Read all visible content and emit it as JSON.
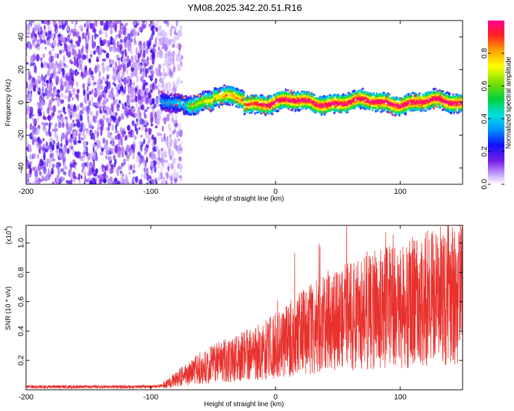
{
  "title": "YM08.2025.342.20.51.R16",
  "chart_data": [
    {
      "type": "heatmap",
      "name": "spectrogram",
      "xlabel": "Height of straight line (km)",
      "ylabel": "Frequency (Hz)",
      "xlim": [
        -200,
        150
      ],
      "ylim": [
        -50,
        50
      ],
      "xticks": [
        -200,
        -100,
        0,
        100
      ],
      "yticks": [
        -40,
        -20,
        0,
        20,
        40
      ],
      "noise_region_x": [
        -200,
        -80
      ],
      "signal_band_center_hz": 0,
      "signal_band_halfwidth_hz": 4,
      "colorbar": {
        "label": "Normalized spectral amplitude",
        "range": [
          0,
          1
        ],
        "ticks": [
          "0.0",
          "0.2",
          "0.4",
          "0.6",
          "0.8"
        ]
      }
    },
    {
      "type": "line",
      "name": "snr",
      "xlabel": "Height of straight line (km)",
      "ylabel": "SNR (10 * v/v)",
      "scale_note": "(x10",
      "scale_exp": "4",
      "xlim": [
        -200,
        150
      ],
      "ylim": [
        0,
        1.12
      ],
      "xticks": [
        -200,
        -100,
        0,
        100
      ],
      "yticks": [
        "0.2",
        "0.4",
        "0.6",
        "0.8",
        "1.0"
      ],
      "envelope_x": [
        -200,
        -100,
        -90,
        -80,
        -60,
        -40,
        -20,
        0,
        20,
        40,
        60,
        80,
        100,
        120,
        150
      ],
      "envelope_y": [
        0.02,
        0.02,
        0.03,
        0.07,
        0.15,
        0.2,
        0.24,
        0.3,
        0.38,
        0.46,
        0.52,
        0.55,
        0.58,
        0.62,
        0.68
      ],
      "color": "#e8302c"
    }
  ]
}
